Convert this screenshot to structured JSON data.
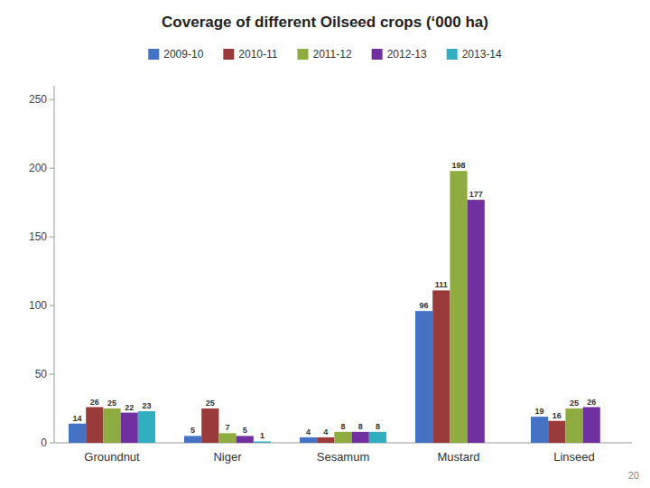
{
  "chart_data": {
    "type": "bar",
    "title": "Coverage of different Oilseed crops (‘000 ha)",
    "categories": [
      "Groundnut",
      "Niger",
      "Sesamum",
      "Mustard",
      "Linseed"
    ],
    "series": [
      {
        "name": "2009-10",
        "color": "#4472c4",
        "values": [
          14,
          5,
          4,
          96,
          19
        ]
      },
      {
        "name": "2010-11",
        "color": "#9b3a3a",
        "values": [
          26,
          25,
          4,
          111,
          16
        ]
      },
      {
        "name": "2011-12",
        "color": "#8fac40",
        "values": [
          25,
          7,
          8,
          198,
          25
        ]
      },
      {
        "name": "2012-13",
        "color": "#7030a0",
        "values": [
          22,
          5,
          8,
          177,
          26
        ]
      },
      {
        "name": "2013-14",
        "color": "#31afc0",
        "values": [
          23,
          1,
          8,
          0,
          0
        ]
      }
    ],
    "ylim": [
      0,
      260
    ],
    "yticks": [
      0,
      50,
      100,
      150,
      200,
      250
    ],
    "grid": false,
    "legend": "top",
    "data_labels": true,
    "annotations": [
      "20"
    ]
  }
}
